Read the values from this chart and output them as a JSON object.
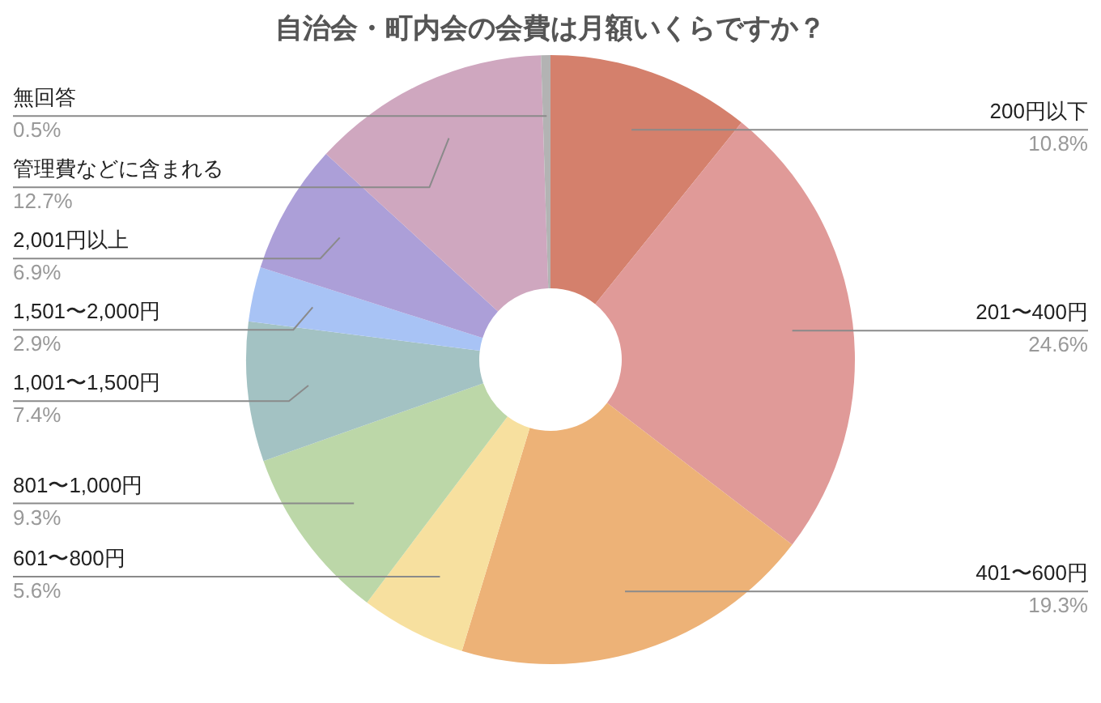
{
  "chart_data": {
    "type": "donut",
    "title": "自治会・町内会の会費は月額いくらですか？",
    "categories": [
      "200円以下",
      "201〜400円",
      "401〜600円",
      "601〜800円",
      "801〜1,000円",
      "1,001〜1,500円",
      "1,501〜2,000円",
      "2,001円以上",
      "管理費などに含まれる",
      "無回答"
    ],
    "values": [
      10.8,
      24.6,
      19.3,
      5.6,
      9.3,
      7.4,
      2.9,
      6.9,
      12.7,
      0.5
    ],
    "colors": [
      "#d4806c",
      "#e09a98",
      "#edb277",
      "#f7e09f",
      "#bcd7a8",
      "#a3c2c3",
      "#a8c3f5",
      "#ac9fd8",
      "#cfa7bf",
      "#b3b3b3"
    ],
    "value_labels": [
      "10.8%",
      "24.6%",
      "19.3%",
      "5.6%",
      "9.3%",
      "7.4%",
      "2.9%",
      "6.9%",
      "12.7%",
      "0.5%"
    ]
  }
}
